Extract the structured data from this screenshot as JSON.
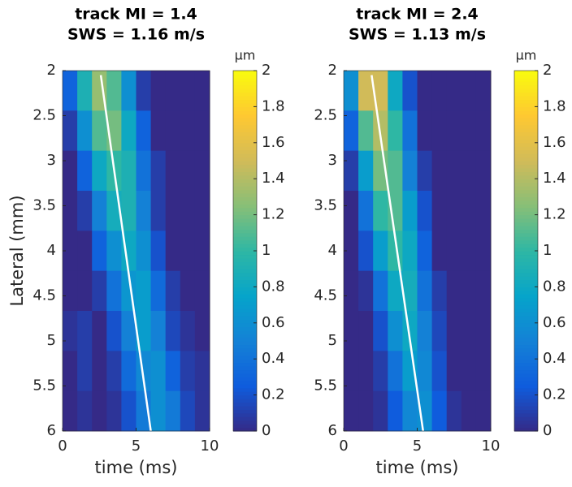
{
  "chart_data": [
    {
      "type": "heatmap",
      "title": "track MI = 1.4",
      "subtitle": "SWS = 1.16 m/s",
      "x_label": "time (ms)",
      "y_label": "Lateral (mm)",
      "colorbar_label": "μm",
      "x": [
        0.5,
        1.5,
        2.5,
        3.5,
        4.5,
        5.5,
        6.5,
        7.5,
        8.5,
        9.5
      ],
      "y": [
        2,
        2.5,
        3,
        3.5,
        4,
        4.5,
        5,
        5.5,
        6
      ],
      "z": [
        [
          0.3,
          0.9,
          1.3,
          1.1,
          0.6,
          0.1,
          0,
          0,
          0,
          0
        ],
        [
          0.1,
          0.6,
          1.1,
          1.2,
          0.8,
          0.3,
          0,
          0,
          0,
          0
        ],
        [
          0,
          0.3,
          0.8,
          1.0,
          0.9,
          0.4,
          0.1,
          0,
          0,
          0
        ],
        [
          0,
          0.1,
          0.5,
          0.85,
          0.9,
          0.5,
          0.1,
          0,
          0,
          0
        ],
        [
          0,
          0,
          0.3,
          0.6,
          0.8,
          0.6,
          0.2,
          0,
          0,
          0
        ],
        [
          0,
          0,
          0.1,
          0.4,
          0.65,
          0.7,
          0.35,
          0.1,
          0,
          0
        ],
        [
          0.05,
          0.1,
          0,
          0.2,
          0.5,
          0.7,
          0.5,
          0.15,
          0.05,
          0
        ],
        [
          0,
          0.1,
          0,
          0.1,
          0.35,
          0.55,
          0.6,
          0.3,
          0.1,
          0.05
        ],
        [
          0,
          0.05,
          0,
          0.05,
          0.2,
          0.45,
          0.6,
          0.45,
          0.15,
          0.05
        ]
      ],
      "fit_line": {
        "x": [
          2.6,
          6.0
        ],
        "y": [
          2.05,
          6
        ],
        "color": "#ffffff"
      },
      "xlim": [
        0,
        10
      ],
      "xticks": [
        0,
        5,
        10
      ],
      "ylim": [
        2,
        6
      ],
      "yticks": [
        2,
        2.5,
        3,
        3.5,
        4,
        4.5,
        5,
        5.5,
        6
      ],
      "y_reversed": true,
      "clim": [
        0,
        2
      ],
      "cticks": [
        0,
        0.2,
        0.4,
        0.6,
        0.8,
        1,
        1.2,
        1.4,
        1.6,
        1.8,
        2
      ],
      "colormap": [
        "#352a87",
        "#0f5cdd",
        "#1481d6",
        "#06a4ca",
        "#2eb7a4",
        "#87bf77",
        "#d1bb59",
        "#fec832",
        "#f9fb0e"
      ]
    },
    {
      "type": "heatmap",
      "title": "track MI = 2.4",
      "subtitle": "SWS = 1.13 m/s",
      "x_label": "time (ms)",
      "colorbar_label": "μm",
      "x": [
        0.5,
        1.5,
        2.5,
        3.5,
        4.5,
        5.5,
        6.5,
        7.5,
        8.5,
        9.5
      ],
      "y": [
        2,
        2.5,
        3,
        3.5,
        4,
        4.5,
        5,
        5.5,
        6
      ],
      "z": [
        [
          0.6,
          1.5,
          1.5,
          0.8,
          0.2,
          0,
          0,
          0,
          0,
          0
        ],
        [
          0.3,
          1.1,
          1.4,
          1.0,
          0.4,
          0,
          0,
          0,
          0,
          0
        ],
        [
          0.1,
          0.7,
          1.2,
          1.1,
          0.5,
          0.1,
          0,
          0,
          0,
          0
        ],
        [
          0,
          0.4,
          1.0,
          1.1,
          0.7,
          0.2,
          0,
          0,
          0,
          0
        ],
        [
          0,
          0.2,
          0.7,
          1.0,
          0.8,
          0.3,
          0,
          0,
          0,
          0
        ],
        [
          0,
          0.05,
          0.4,
          0.8,
          0.85,
          0.4,
          0.1,
          0,
          0,
          0
        ],
        [
          0,
          0,
          0.2,
          0.6,
          0.8,
          0.5,
          0.15,
          0,
          0,
          0
        ],
        [
          0,
          0,
          0.1,
          0.4,
          0.7,
          0.55,
          0.2,
          0,
          0,
          0
        ],
        [
          0,
          0,
          0.05,
          0.25,
          0.55,
          0.6,
          0.25,
          0.05,
          0,
          0
        ]
      ],
      "fit_line": {
        "x": [
          1.9,
          5.4
        ],
        "y": [
          2.05,
          6
        ],
        "color": "#ffffff"
      },
      "xlim": [
        0,
        10
      ],
      "xticks": [
        0,
        5,
        10
      ],
      "ylim": [
        2,
        6
      ],
      "yticks": [
        2,
        2.5,
        3,
        3.5,
        4,
        4.5,
        5,
        5.5,
        6
      ],
      "y_reversed": true,
      "clim": [
        0,
        2
      ],
      "cticks": [
        0,
        0.2,
        0.4,
        0.6,
        0.8,
        1,
        1.2,
        1.4,
        1.6,
        1.8,
        2
      ],
      "colormap": [
        "#352a87",
        "#0f5cdd",
        "#1481d6",
        "#06a4ca",
        "#2eb7a4",
        "#87bf77",
        "#d1bb59",
        "#fec832",
        "#f9fb0e"
      ]
    }
  ]
}
